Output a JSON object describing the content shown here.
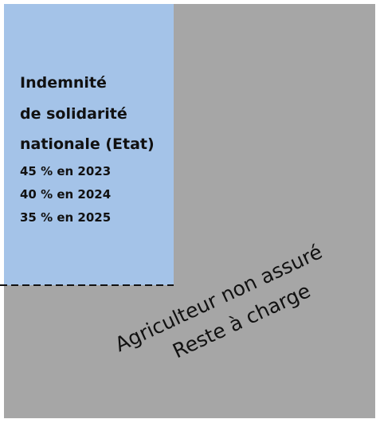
{
  "state_box": {
    "lines": [
      "Indemnité",
      "de solidarité",
      "nationale (Etat)"
    ],
    "rates": [
      "45 % en 2023",
      "40 % en 2024",
      "35 % en 2025"
    ]
  },
  "farmer_box": {
    "lines": [
      "Agriculteur non assuré",
      "Reste à charge"
    ]
  }
}
